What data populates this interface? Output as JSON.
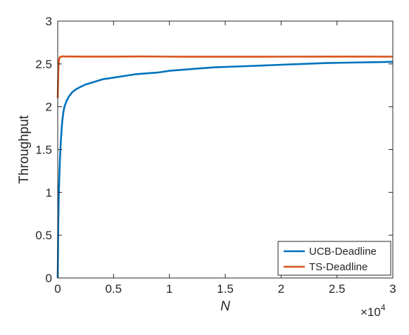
{
  "chart_data": {
    "type": "line",
    "title": "",
    "xlabel": "N",
    "ylabel": "Throughput",
    "x_exponent_label": "×10",
    "x_exponent_power": "4",
    "xlim": [
      0,
      30000
    ],
    "ylim": [
      0,
      3
    ],
    "x_ticks": [
      0,
      5000,
      10000,
      15000,
      20000,
      25000,
      30000
    ],
    "x_tick_labels": [
      "0",
      "0.5",
      "1",
      "1.5",
      "2",
      "2.5",
      "3"
    ],
    "y_ticks": [
      0,
      0.5,
      1,
      1.5,
      2,
      2.5,
      3
    ],
    "y_tick_labels": [
      "0",
      "0.5",
      "1",
      "1.5",
      "2",
      "2.5",
      "3"
    ],
    "grid": false,
    "legend_position": "bottom-right",
    "series": [
      {
        "name": "UCB-Deadline",
        "color": "#0072BD",
        "x": [
          0,
          50,
          100,
          200,
          300,
          400,
          500,
          600,
          800,
          1000,
          1300,
          1600,
          2000,
          2500,
          3000,
          3500,
          4000,
          5000,
          6000,
          7000,
          8000,
          9000,
          10000,
          12000,
          14000,
          16000,
          18000,
          20000,
          22000,
          24000,
          26000,
          28000,
          30000
        ],
        "y": [
          0.0,
          0.65,
          1.0,
          1.4,
          1.65,
          1.82,
          1.93,
          2.0,
          2.07,
          2.12,
          2.17,
          2.2,
          2.23,
          2.26,
          2.28,
          2.3,
          2.32,
          2.34,
          2.36,
          2.38,
          2.39,
          2.4,
          2.42,
          2.44,
          2.46,
          2.47,
          2.48,
          2.49,
          2.5,
          2.51,
          2.515,
          2.52,
          2.525
        ]
      },
      {
        "name": "TS-Deadline",
        "color": "#D95319",
        "x": [
          0,
          50,
          100,
          200,
          300,
          500,
          800,
          1000,
          2000,
          3000,
          5000,
          7500,
          10000,
          15000,
          20000,
          25000,
          30000
        ],
        "y": [
          2.1,
          2.4,
          2.55,
          2.58,
          2.585,
          2.588,
          2.585,
          2.587,
          2.586,
          2.586,
          2.586,
          2.587,
          2.585,
          2.584,
          2.585,
          2.586,
          2.585
        ]
      }
    ]
  }
}
